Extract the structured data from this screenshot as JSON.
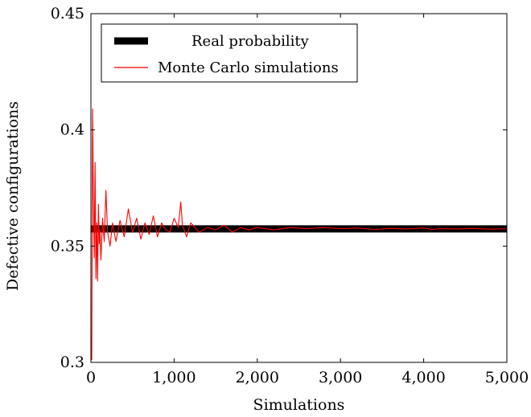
{
  "chart_data": {
    "type": "line",
    "xlabel": "Simulations",
    "ylabel": "Defective configurations",
    "xlim": [
      0,
      5000
    ],
    "ylim": [
      0.3,
      0.45
    ],
    "xticks": [
      0,
      1000,
      2000,
      3000,
      4000,
      5000
    ],
    "xtick_labels": [
      "0",
      "1,000",
      "2,000",
      "3,000",
      "4,000",
      "5,000"
    ],
    "yticks": [
      0.3,
      0.35,
      0.4,
      0.45
    ],
    "ytick_labels": [
      "0.3",
      "0.35",
      "0.4",
      "0.45"
    ],
    "grid": false,
    "legend_position": "top-left",
    "series": [
      {
        "name": "Real probability",
        "color": "#000000",
        "x": [
          0,
          5000
        ],
        "y": [
          0.3574,
          0.3574
        ]
      },
      {
        "name": "Monte Carlo simulations",
        "color": "#ff0000",
        "x": [
          10,
          20,
          30,
          40,
          50,
          60,
          70,
          80,
          90,
          100,
          110,
          120,
          140,
          160,
          180,
          200,
          230,
          260,
          300,
          350,
          400,
          450,
          500,
          550,
          600,
          650,
          700,
          750,
          800,
          850,
          900,
          950,
          1000,
          1050,
          1080,
          1100,
          1150,
          1200,
          1300,
          1400,
          1500,
          1600,
          1700,
          1800,
          1900,
          2000,
          2200,
          2400,
          2600,
          2800,
          3000,
          3200,
          3400,
          3600,
          3800,
          4000,
          4100,
          4200,
          4400,
          4600,
          4800,
          5000
        ],
        "y": [
          0.301,
          0.409,
          0.37,
          0.345,
          0.386,
          0.336,
          0.36,
          0.335,
          0.368,
          0.351,
          0.357,
          0.344,
          0.362,
          0.352,
          0.374,
          0.356,
          0.35,
          0.36,
          0.352,
          0.361,
          0.354,
          0.366,
          0.356,
          0.362,
          0.353,
          0.36,
          0.355,
          0.363,
          0.354,
          0.36,
          0.357,
          0.356,
          0.362,
          0.358,
          0.369,
          0.359,
          0.354,
          0.36,
          0.356,
          0.358,
          0.357,
          0.359,
          0.356,
          0.358,
          0.357,
          0.358,
          0.357,
          0.358,
          0.3575,
          0.358,
          0.3575,
          0.3578,
          0.3572,
          0.3576,
          0.3574,
          0.3578,
          0.3572,
          0.3575,
          0.3574,
          0.3576,
          0.3573,
          0.3575
        ]
      }
    ]
  }
}
